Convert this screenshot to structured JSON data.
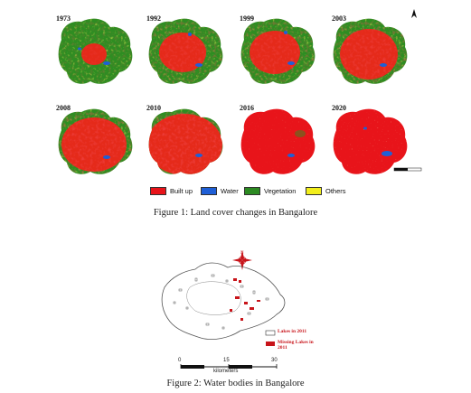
{
  "figure1": {
    "years": [
      "1973",
      "1992",
      "1999",
      "2003",
      "2008",
      "2010",
      "2016",
      "2020"
    ],
    "legend": [
      {
        "label": "Built up",
        "color": "#e8141a"
      },
      {
        "label": "Water",
        "color": "#1f5fd6"
      },
      {
        "label": "Vegetation",
        "color": "#2c8a22"
      },
      {
        "label": "Others",
        "color": "#f2ee1b"
      }
    ],
    "north_symbol": "N",
    "caption": "Figure 1: Land cover changes in Bangalore"
  },
  "figure2": {
    "legend": [
      {
        "label": "Lakes in 2011",
        "color": "#ffffff"
      },
      {
        "label": "Missing Lakes in 2011",
        "color": "#c8141a"
      }
    ],
    "scale": {
      "ticks": [
        "0",
        "15",
        "30"
      ],
      "unit": "kilometers"
    },
    "caption": "Figure 2: Water bodies in Bangalore"
  }
}
